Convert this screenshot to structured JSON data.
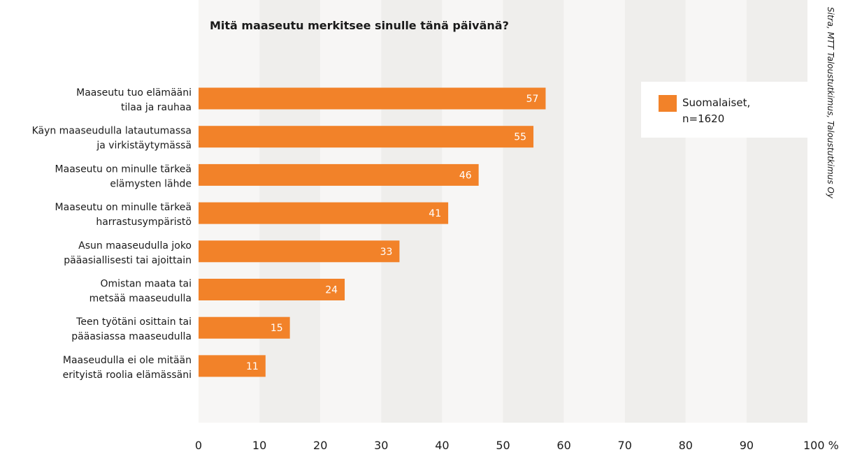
{
  "chart_data": {
    "type": "bar",
    "orientation": "horizontal",
    "title": "Mitä maaseutu merkitsee sinulle tänä päivänä?",
    "categories": [
      [
        "Maaseutu tuo elämääni",
        "tilaa ja rauhaa"
      ],
      [
        "Käyn maaseudulla latautumassa",
        "ja virkistäytymässä"
      ],
      [
        "Maaseutu on minulle tärkeä",
        "elämysten lähde"
      ],
      [
        "Maaseutu on minulle tärkeä",
        "harrastusympäristö"
      ],
      [
        "Asun maaseudulla joko",
        "pääasiallisesti tai ajoittain"
      ],
      [
        "Omistan maata tai",
        "metsää maaseudulla"
      ],
      [
        "Teen työtäni osittain tai",
        "pääasiassa maaseudulla"
      ],
      [
        "Maaseudulla ei ole mitään",
        "erityistä roolia elämässäni"
      ]
    ],
    "series": [
      {
        "name": "Suomalaiset, n=1620",
        "values": [
          57,
          55,
          46,
          41,
          33,
          24,
          15,
          11
        ]
      }
    ],
    "legend": {
      "lines": [
        "Suomalaiset,",
        "n=1620"
      ],
      "position": "top-right"
    },
    "xlim": [
      0,
      100
    ],
    "xticks": [
      "0",
      "10",
      "20",
      "30",
      "40",
      "50",
      "60",
      "70",
      "80",
      "90",
      "100 %"
    ],
    "grid": "alternating column bands",
    "source": "Sitra, MTT Taloustutkimus, Taloustutkimus Oy",
    "colors": {
      "bar": "#f28229",
      "band_light": "#f7f6f5",
      "band_dark": "#efeeec",
      "legend_bg": "#ffffff"
    }
  }
}
